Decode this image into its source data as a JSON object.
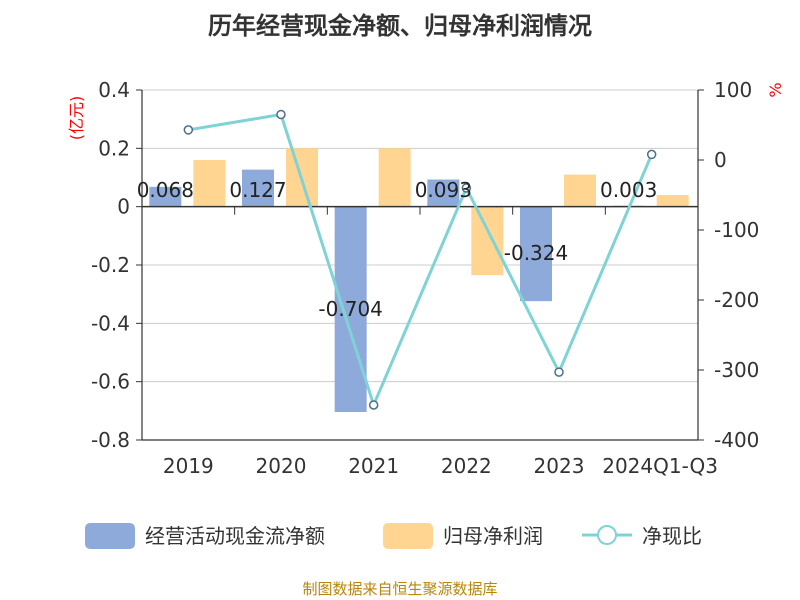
{
  "chart_data": {
    "type": "bar",
    "title": "历年经营现金净额、归母净利润情况",
    "categories": [
      "2019",
      "2020",
      "2021",
      "2022",
      "2023",
      "2024Q1-Q3"
    ],
    "series": [
      {
        "name": "经营活动现金流净额",
        "type": "bar",
        "axis": "left",
        "values": [
          0.068,
          0.127,
          -0.704,
          0.093,
          -0.324,
          0.003
        ],
        "labels": [
          "0.068",
          "0.127",
          "-0.704",
          "0.093",
          "-0.324",
          "0.003"
        ],
        "color": "#8eaadb"
      },
      {
        "name": "归母净利润",
        "type": "bar",
        "axis": "left",
        "values": [
          0.16,
          0.2,
          0.2,
          -0.235,
          0.11,
          0.04
        ],
        "color": "#ffd591"
      },
      {
        "name": "净现比",
        "type": "line",
        "axis": "right",
        "values": [
          43,
          65,
          -350,
          -40,
          -303,
          8
        ],
        "color": "#7fd3d6"
      }
    ],
    "y_left": {
      "unit_label": "(亿元)",
      "ylim": [
        -0.8,
        0.4
      ],
      "ticks": [
        "0.4",
        "0.2",
        "0",
        "-0.2",
        "-0.4",
        "-0.6",
        "-0.8"
      ],
      "unit_color": "#ff0000"
    },
    "y_right": {
      "unit_label": "%",
      "ylim": [
        -400,
        100
      ],
      "ticks": [
        "100",
        "0",
        "-100",
        "-200",
        "-300",
        "-400"
      ],
      "unit_color": "#ff0000"
    },
    "grid": true,
    "legend": "bottom"
  },
  "source": "制图数据来自恒生聚源数据库"
}
